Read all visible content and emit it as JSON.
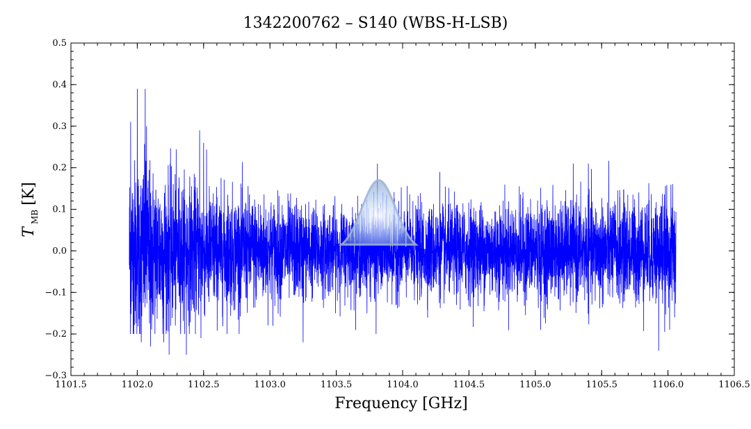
{
  "chart_data": {
    "type": "line",
    "title": "1342200762 – S140 (WBS-H-LSB)",
    "xlabel": "Frequency [GHz]",
    "ylabel_symbol": "T",
    "ylabel_subscript": "MB",
    "ylabel_unit": "[K]",
    "xlim": [
      1101.5,
      1106.5
    ],
    "ylim": [
      -0.3,
      0.5
    ],
    "x_ticks": [
      "1101.5",
      "1102.0",
      "1102.5",
      "1103.0",
      "1103.5",
      "1104.0",
      "1104.5",
      "1105.0",
      "1105.5",
      "1106.0",
      "1106.5"
    ],
    "y_ticks": [
      "0.5",
      "0.4",
      "0.3",
      "0.2",
      "0.1",
      "0.0",
      "−0.1",
      "−0.2",
      "−0.3"
    ],
    "grid": false,
    "series": [
      {
        "color": "#0000ff",
        "x_range": [
          1101.94,
          1106.06
        ],
        "noise_rms": [
          [
            1101.94,
            0.11
          ],
          [
            1102.5,
            0.075
          ],
          [
            1103.5,
            0.05
          ],
          [
            1104.5,
            0.055
          ],
          [
            1105.5,
            0.06
          ],
          [
            1106.06,
            0.065
          ]
        ],
        "features": [
          {
            "x": 1101.95,
            "y": 0.31
          },
          {
            "x": 1101.97,
            "y": -0.18
          },
          {
            "x": 1102.0,
            "y": 0.39
          },
          {
            "x": 1102.03,
            "y": -0.22
          },
          {
            "x": 1102.06,
            "y": 0.39
          },
          {
            "x": 1102.07,
            "y": 0.3
          },
          {
            "x": 1102.1,
            "y": -0.23
          },
          {
            "x": 1102.2,
            "y": -0.22
          },
          {
            "x": 1102.24,
            "y": -0.25
          },
          {
            "x": 1102.37,
            "y": -0.25
          },
          {
            "x": 1102.47,
            "y": 0.29
          },
          {
            "x": 1102.5,
            "y": 0.26
          },
          {
            "x": 1102.48,
            "y": -0.21
          },
          {
            "x": 1103.25,
            "y": -0.22
          },
          {
            "x": 1103.81,
            "y": 0.21
          },
          {
            "x": 1103.8,
            "y": -0.2
          },
          {
            "x": 1104.28,
            "y": 0.19
          },
          {
            "x": 1105.04,
            "y": -0.19
          },
          {
            "x": 1105.4,
            "y": 0.21
          },
          {
            "x": 1105.93,
            "y": -0.24
          },
          {
            "x": 1106.05,
            "y": -0.16
          }
        ]
      }
    ],
    "overlay": {
      "type": "gaussian-line-marker",
      "center": 1103.82,
      "peak": 0.17,
      "width": 0.3,
      "color": "#9fb4d6"
    }
  }
}
